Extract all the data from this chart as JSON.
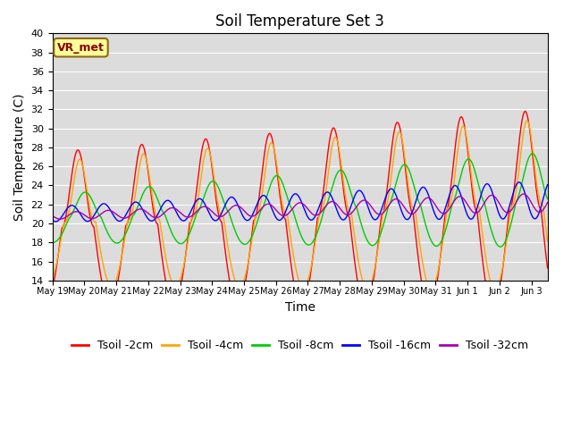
{
  "title": "Soil Temperature Set 3",
  "xlabel": "Time",
  "ylabel": "Soil Temperature (C)",
  "ylim": [
    14,
    40
  ],
  "yticks": [
    14,
    16,
    18,
    20,
    22,
    24,
    26,
    28,
    30,
    32,
    34,
    36,
    38,
    40
  ],
  "annotation_text": "VR_met",
  "series_colors": {
    "Tsoil -2cm": "#FF0000",
    "Tsoil -4cm": "#FFA500",
    "Tsoil -8cm": "#00CC00",
    "Tsoil -16cm": "#0000FF",
    "Tsoil -32cm": "#AA00AA"
  },
  "plot_bg_color": "#DCDCDC",
  "title_fontsize": 12,
  "axis_fontsize": 10,
  "tick_fontsize": 8,
  "legend_fontsize": 9,
  "total_days": 15.5,
  "xtick_labels": [
    "May 19",
    "May 20",
    "May 21",
    "May 22",
    "May 23",
    "May 24",
    "May 25",
    "May 26",
    "May 27",
    "May 28",
    "May 29",
    "May 30",
    "May 31",
    "Jun 1",
    "Jun 2",
    "Jun 3"
  ]
}
